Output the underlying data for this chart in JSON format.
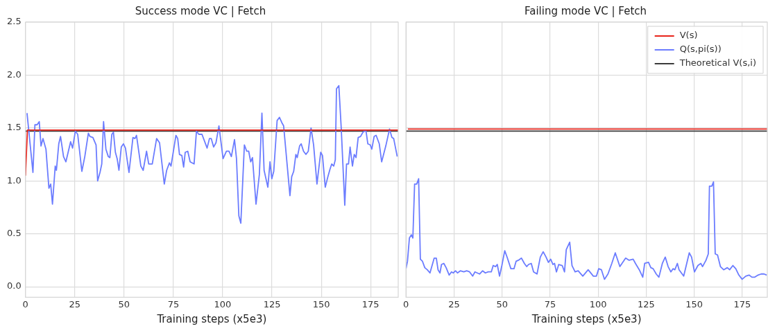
{
  "chart_data": [
    {
      "type": "line",
      "title": "Success mode VC | Fetch",
      "xlabel": "Training steps (x5e3)",
      "xlim": [
        0,
        189
      ],
      "ylim": [
        -0.1,
        2.5
      ],
      "xticks": [
        0,
        25,
        50,
        75,
        100,
        125,
        150,
        175
      ],
      "yticks": [
        {
          "value": 0,
          "label": "0.0"
        },
        0.5,
        {
          "value": 1,
          "label": "1.0"
        },
        1.5,
        {
          "value": 2,
          "label": "2.0"
        },
        2.5
      ],
      "grid": true,
      "legend": false,
      "marker": "none",
      "series": [
        {
          "color": "#e8231a",
          "x": [
            0,
            1,
            20,
            40,
            60,
            80,
            100,
            120,
            140,
            160,
            180,
            189
          ],
          "values": [
            1.05,
            1.48,
            1.48,
            1.48,
            1.48,
            1.48,
            1.48,
            1.48,
            1.48,
            1.48,
            1.48,
            1.48
          ]
        },
        {
          "color": "#6b7cff",
          "x": [
            0.8,
            3.8,
            4.8,
            5.9,
            7.0,
            7.9,
            8.9,
            10.4,
            11.9,
            12.8,
            13.7,
            15.1,
            15.7,
            16.9,
            17.8,
            19.3,
            20.5,
            22.9,
            23.9,
            25.3,
            26.5,
            28.6,
            30.1,
            31.9,
            32.7,
            34.2,
            35.8,
            36.6,
            37.8,
            38.7,
            39.6,
            40.8,
            42.0,
            42.8,
            43.8,
            44.6,
            45.6,
            46.5,
            47.4,
            48.6,
            49.7,
            50.7,
            52.5,
            54.5,
            55.5,
            56.3,
            58.5,
            59.7,
            61.4,
            62.5,
            64.3,
            66.5,
            68.0,
            70.4,
            71.6,
            73.0,
            73.8,
            76.3,
            77.2,
            78.1,
            79.3,
            80.2,
            81.0,
            82.3,
            83.5,
            85.5,
            86.7,
            87.9,
            89.5,
            92.1,
            93.3,
            94.2,
            95.4,
            96.6,
            98.1,
            100.2,
            101.9,
            103.2,
            104.4,
            106.0,
            107.0,
            108.2,
            109.2,
            111.0,
            112.2,
            113.2,
            114.2,
            115.1,
            116.9,
            118.6,
            119.9,
            121.0,
            122.9,
            124.0,
            124.9,
            125.9,
            127.6,
            128.8,
            130.0,
            130.9,
            134.1,
            135.0,
            136.0,
            137.1,
            137.8,
            139.0,
            139.8,
            141.0,
            142.2,
            143.4,
            144.8,
            146.1,
            147.8,
            149.7,
            150.6,
            152.0,
            153.2,
            154.4,
            155.3,
            156.3,
            157.1,
            157.7,
            158.9,
            160.1,
            161.9,
            162.8,
            163.8,
            164.6,
            165.8,
            166.7,
            167.6,
            168.7,
            169.9,
            171.1,
            172.6,
            173.6,
            174.8,
            175.6,
            176.8,
            177.8,
            179.4,
            180.6,
            182.7,
            184.6,
            185.8,
            186.7,
            188.5
          ],
          "values": [
            1.64,
            1.08,
            1.53,
            1.53,
            1.56,
            1.33,
            1.4,
            1.3,
            0.93,
            0.97,
            0.78,
            1.14,
            1.1,
            1.35,
            1.42,
            1.23,
            1.18,
            1.37,
            1.31,
            1.47,
            1.44,
            1.09,
            1.23,
            1.45,
            1.42,
            1.41,
            1.34,
            1.0,
            1.08,
            1.16,
            1.56,
            1.3,
            1.23,
            1.22,
            1.44,
            1.46,
            1.27,
            1.21,
            1.1,
            1.32,
            1.35,
            1.31,
            1.08,
            1.41,
            1.4,
            1.43,
            1.14,
            1.1,
            1.28,
            1.16,
            1.16,
            1.4,
            1.36,
            0.97,
            1.1,
            1.17,
            1.14,
            1.43,
            1.4,
            1.25,
            1.24,
            1.13,
            1.27,
            1.28,
            1.18,
            1.16,
            1.47,
            1.44,
            1.44,
            1.31,
            1.4,
            1.4,
            1.32,
            1.36,
            1.52,
            1.21,
            1.28,
            1.28,
            1.23,
            1.39,
            1.21,
            0.67,
            0.6,
            1.34,
            1.28,
            1.28,
            1.18,
            1.22,
            0.78,
            1.06,
            1.64,
            1.1,
            0.94,
            1.18,
            1.02,
            1.09,
            1.57,
            1.6,
            1.55,
            1.52,
            0.86,
            1.04,
            1.09,
            1.25,
            1.22,
            1.33,
            1.35,
            1.28,
            1.25,
            1.28,
            1.5,
            1.34,
            0.97,
            1.27,
            1.24,
            0.94,
            1.03,
            1.11,
            1.16,
            1.14,
            1.2,
            1.87,
            1.9,
            1.5,
            0.77,
            1.16,
            1.16,
            1.32,
            1.14,
            1.25,
            1.22,
            1.41,
            1.42,
            1.46,
            1.48,
            1.35,
            1.34,
            1.3,
            1.42,
            1.43,
            1.35,
            1.18,
            1.33,
            1.49,
            1.41,
            1.4,
            1.23
          ]
        },
        {
          "color": "#3a3a3a",
          "x": [
            0,
            189
          ],
          "values": [
            1.47,
            1.47
          ]
        }
      ]
    },
    {
      "type": "line",
      "title": "Failing mode VC | Fetch",
      "xlabel": "Training steps (x5e3)",
      "xlim": [
        0,
        188
      ],
      "ylim": [
        -0.1,
        2.5
      ],
      "xticks": [
        0,
        25,
        50,
        75,
        100,
        125,
        150,
        175
      ],
      "yticks": [
        0,
        0.5,
        1,
        1.5,
        2,
        2.5
      ],
      "tick_labels": "x",
      "grid": true,
      "legend": "top right",
      "marker": "none",
      "series": [
        {
          "name": "V(s)",
          "color": "#e8231a",
          "x": [
            1,
            20,
            40,
            60,
            80,
            100,
            120,
            140,
            160,
            180,
            188
          ],
          "values": [
            1.49,
            1.49,
            1.49,
            1.49,
            1.49,
            1.49,
            1.49,
            1.49,
            1.49,
            1.49,
            1.49
          ]
        },
        {
          "name": "Q(s,pi(s))",
          "color": "#6b7cff",
          "x": [
            0,
            0.8,
            1.8,
            2.8,
            3.6,
            4.5,
            5.6,
            6.6,
            7.5,
            8.6,
            9.8,
            11.1,
            12.5,
            14.7,
            15.8,
            16.7,
            17.7,
            18.5,
            19.7,
            20.9,
            22.5,
            23.7,
            24.6,
            25.8,
            26.8,
            28.3,
            30.1,
            31.6,
            33.1,
            34.7,
            35.9,
            37.1,
            38.3,
            39.9,
            41.3,
            42.8,
            44.4,
            45.4,
            46.6,
            47.5,
            48.7,
            49.9,
            51.4,
            52.6,
            54.6,
            56.2,
            57.3,
            58.5,
            60.1,
            61.6,
            62.8,
            63.8,
            65.2,
            66.4,
            68.2,
            69.9,
            71.4,
            72.9,
            74.1,
            75.3,
            76.5,
            77.3,
            78.3,
            79.5,
            81.3,
            82.5,
            83.4,
            85.2,
            86.4,
            88.0,
            89.6,
            92.0,
            94.8,
            97.5,
            99.1,
            100.3,
            101.7,
            103.3,
            105.1,
            107.1,
            108.9,
            111.3,
            114.3,
            116.1,
            118.2,
            119.4,
            121.4,
            123.2,
            124.2,
            126.2,
            127.4,
            128.6,
            130.2,
            131.6,
            133.4,
            134.9,
            136.4,
            137.8,
            139.0,
            139.9,
            141.2,
            142.1,
            144.5,
            147.4,
            148.6,
            150.1,
            151.9,
            153.4,
            154.3,
            156.1,
            157.3,
            157.9,
            159.1,
            160.0,
            160.9,
            162.1,
            163.6,
            165.3,
            167.2,
            168.4,
            170.1,
            171.6,
            173.2,
            174.9,
            176.8,
            178.5,
            180.0,
            181.5,
            183.2,
            184.8,
            186.3,
            187.7
          ],
          "values": [
            0.17,
            0.24,
            0.46,
            0.49,
            0.46,
            0.97,
            0.97,
            1.02,
            0.26,
            0.24,
            0.18,
            0.16,
            0.13,
            0.27,
            0.27,
            0.16,
            0.13,
            0.21,
            0.22,
            0.18,
            0.11,
            0.14,
            0.13,
            0.15,
            0.13,
            0.15,
            0.14,
            0.15,
            0.14,
            0.1,
            0.14,
            0.13,
            0.12,
            0.15,
            0.13,
            0.14,
            0.14,
            0.2,
            0.19,
            0.21,
            0.1,
            0.2,
            0.34,
            0.28,
            0.17,
            0.17,
            0.24,
            0.25,
            0.27,
            0.22,
            0.19,
            0.21,
            0.22,
            0.14,
            0.12,
            0.28,
            0.33,
            0.28,
            0.23,
            0.26,
            0.21,
            0.22,
            0.14,
            0.21,
            0.2,
            0.14,
            0.35,
            0.42,
            0.2,
            0.14,
            0.15,
            0.1,
            0.16,
            0.1,
            0.1,
            0.17,
            0.16,
            0.07,
            0.12,
            0.22,
            0.32,
            0.19,
            0.27,
            0.25,
            0.26,
            0.22,
            0.16,
            0.09,
            0.22,
            0.23,
            0.18,
            0.17,
            0.12,
            0.09,
            0.22,
            0.28,
            0.19,
            0.14,
            0.17,
            0.16,
            0.22,
            0.16,
            0.1,
            0.32,
            0.28,
            0.14,
            0.2,
            0.22,
            0.19,
            0.25,
            0.31,
            0.95,
            0.95,
            0.99,
            0.31,
            0.3,
            0.19,
            0.16,
            0.18,
            0.16,
            0.2,
            0.17,
            0.11,
            0.07,
            0.1,
            0.11,
            0.09,
            0.09,
            0.11,
            0.12,
            0.12,
            0.11
          ]
        },
        {
          "name": "Theoretical V(s,i)",
          "color": "#3a3a3a",
          "x": [
            0,
            188
          ],
          "values": [
            1.47,
            1.47
          ]
        }
      ]
    }
  ]
}
